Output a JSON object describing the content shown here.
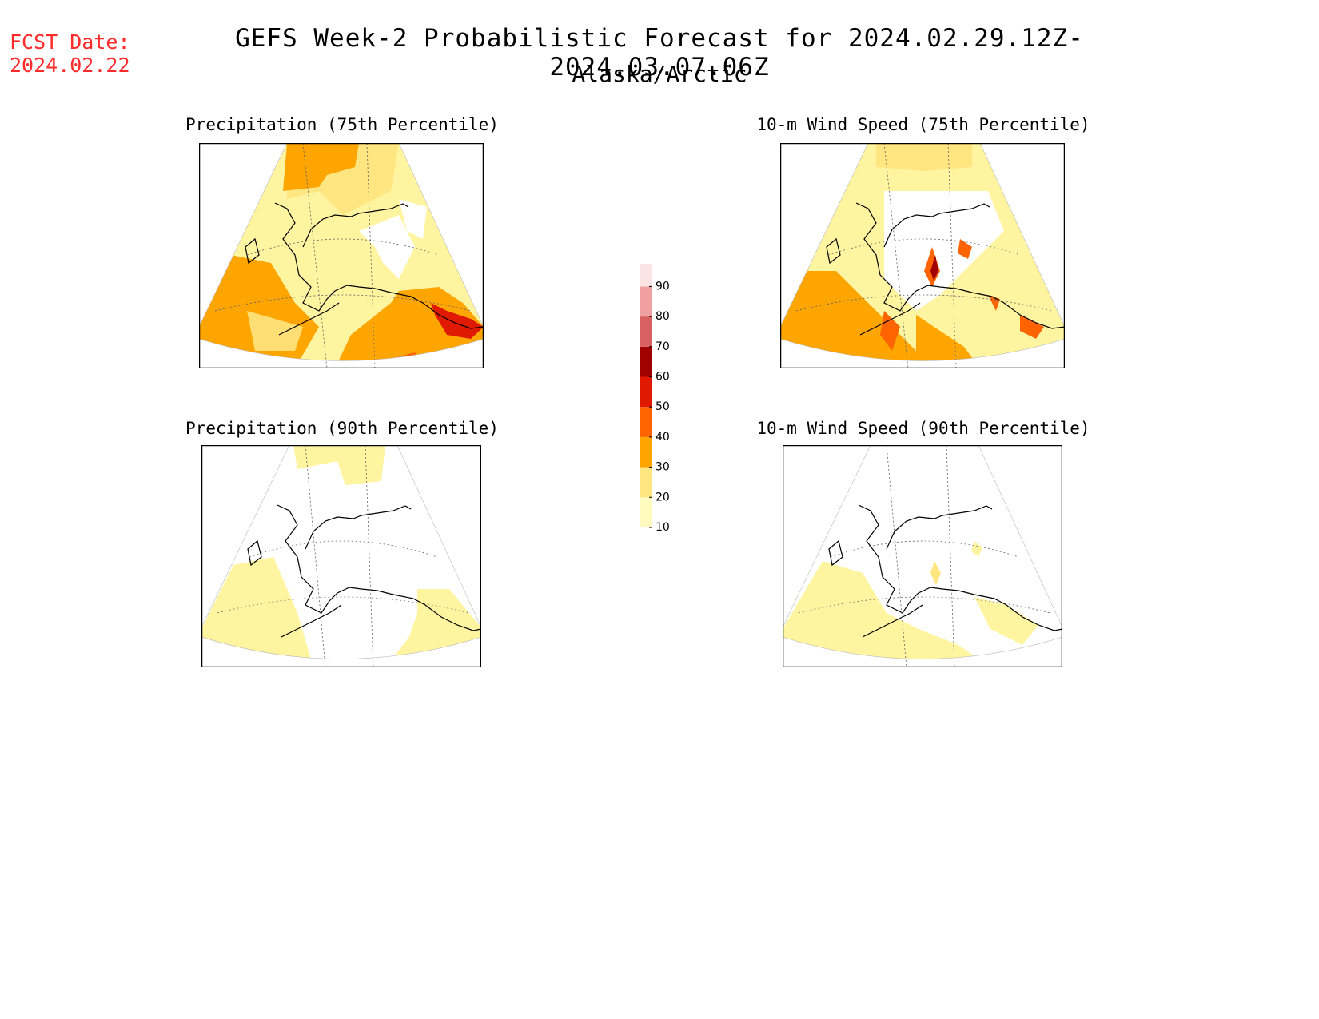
{
  "header": {
    "fcst_label": "FCST Date:",
    "fcst_date": "2024.02.22",
    "title": "GEFS Week-2 Probabilistic Forecast for 2024.02.29.12Z-2024.03.07.06Z",
    "subtitle": "Alaska/Arctic"
  },
  "panels": [
    {
      "id": "precip-75",
      "title": "Precipitation (75th Percentile)"
    },
    {
      "id": "wind-75",
      "title": "10-m Wind Speed (75th Percentile)"
    },
    {
      "id": "precip-90",
      "title": "Precipitation (90th Percentile)"
    },
    {
      "id": "wind-90",
      "title": "10-m Wind Speed (90th Percentile)"
    }
  ],
  "colorbar": {
    "levels": [
      "10",
      "20",
      "30",
      "40",
      "50",
      "60",
      "70",
      "80",
      "90"
    ],
    "colors": [
      "#fffbbf",
      "#ffe680",
      "#ffa500",
      "#ff6400",
      "#e01a00",
      "#a00000",
      "#d96060",
      "#f0a0a0",
      "#fde4e4"
    ]
  }
}
